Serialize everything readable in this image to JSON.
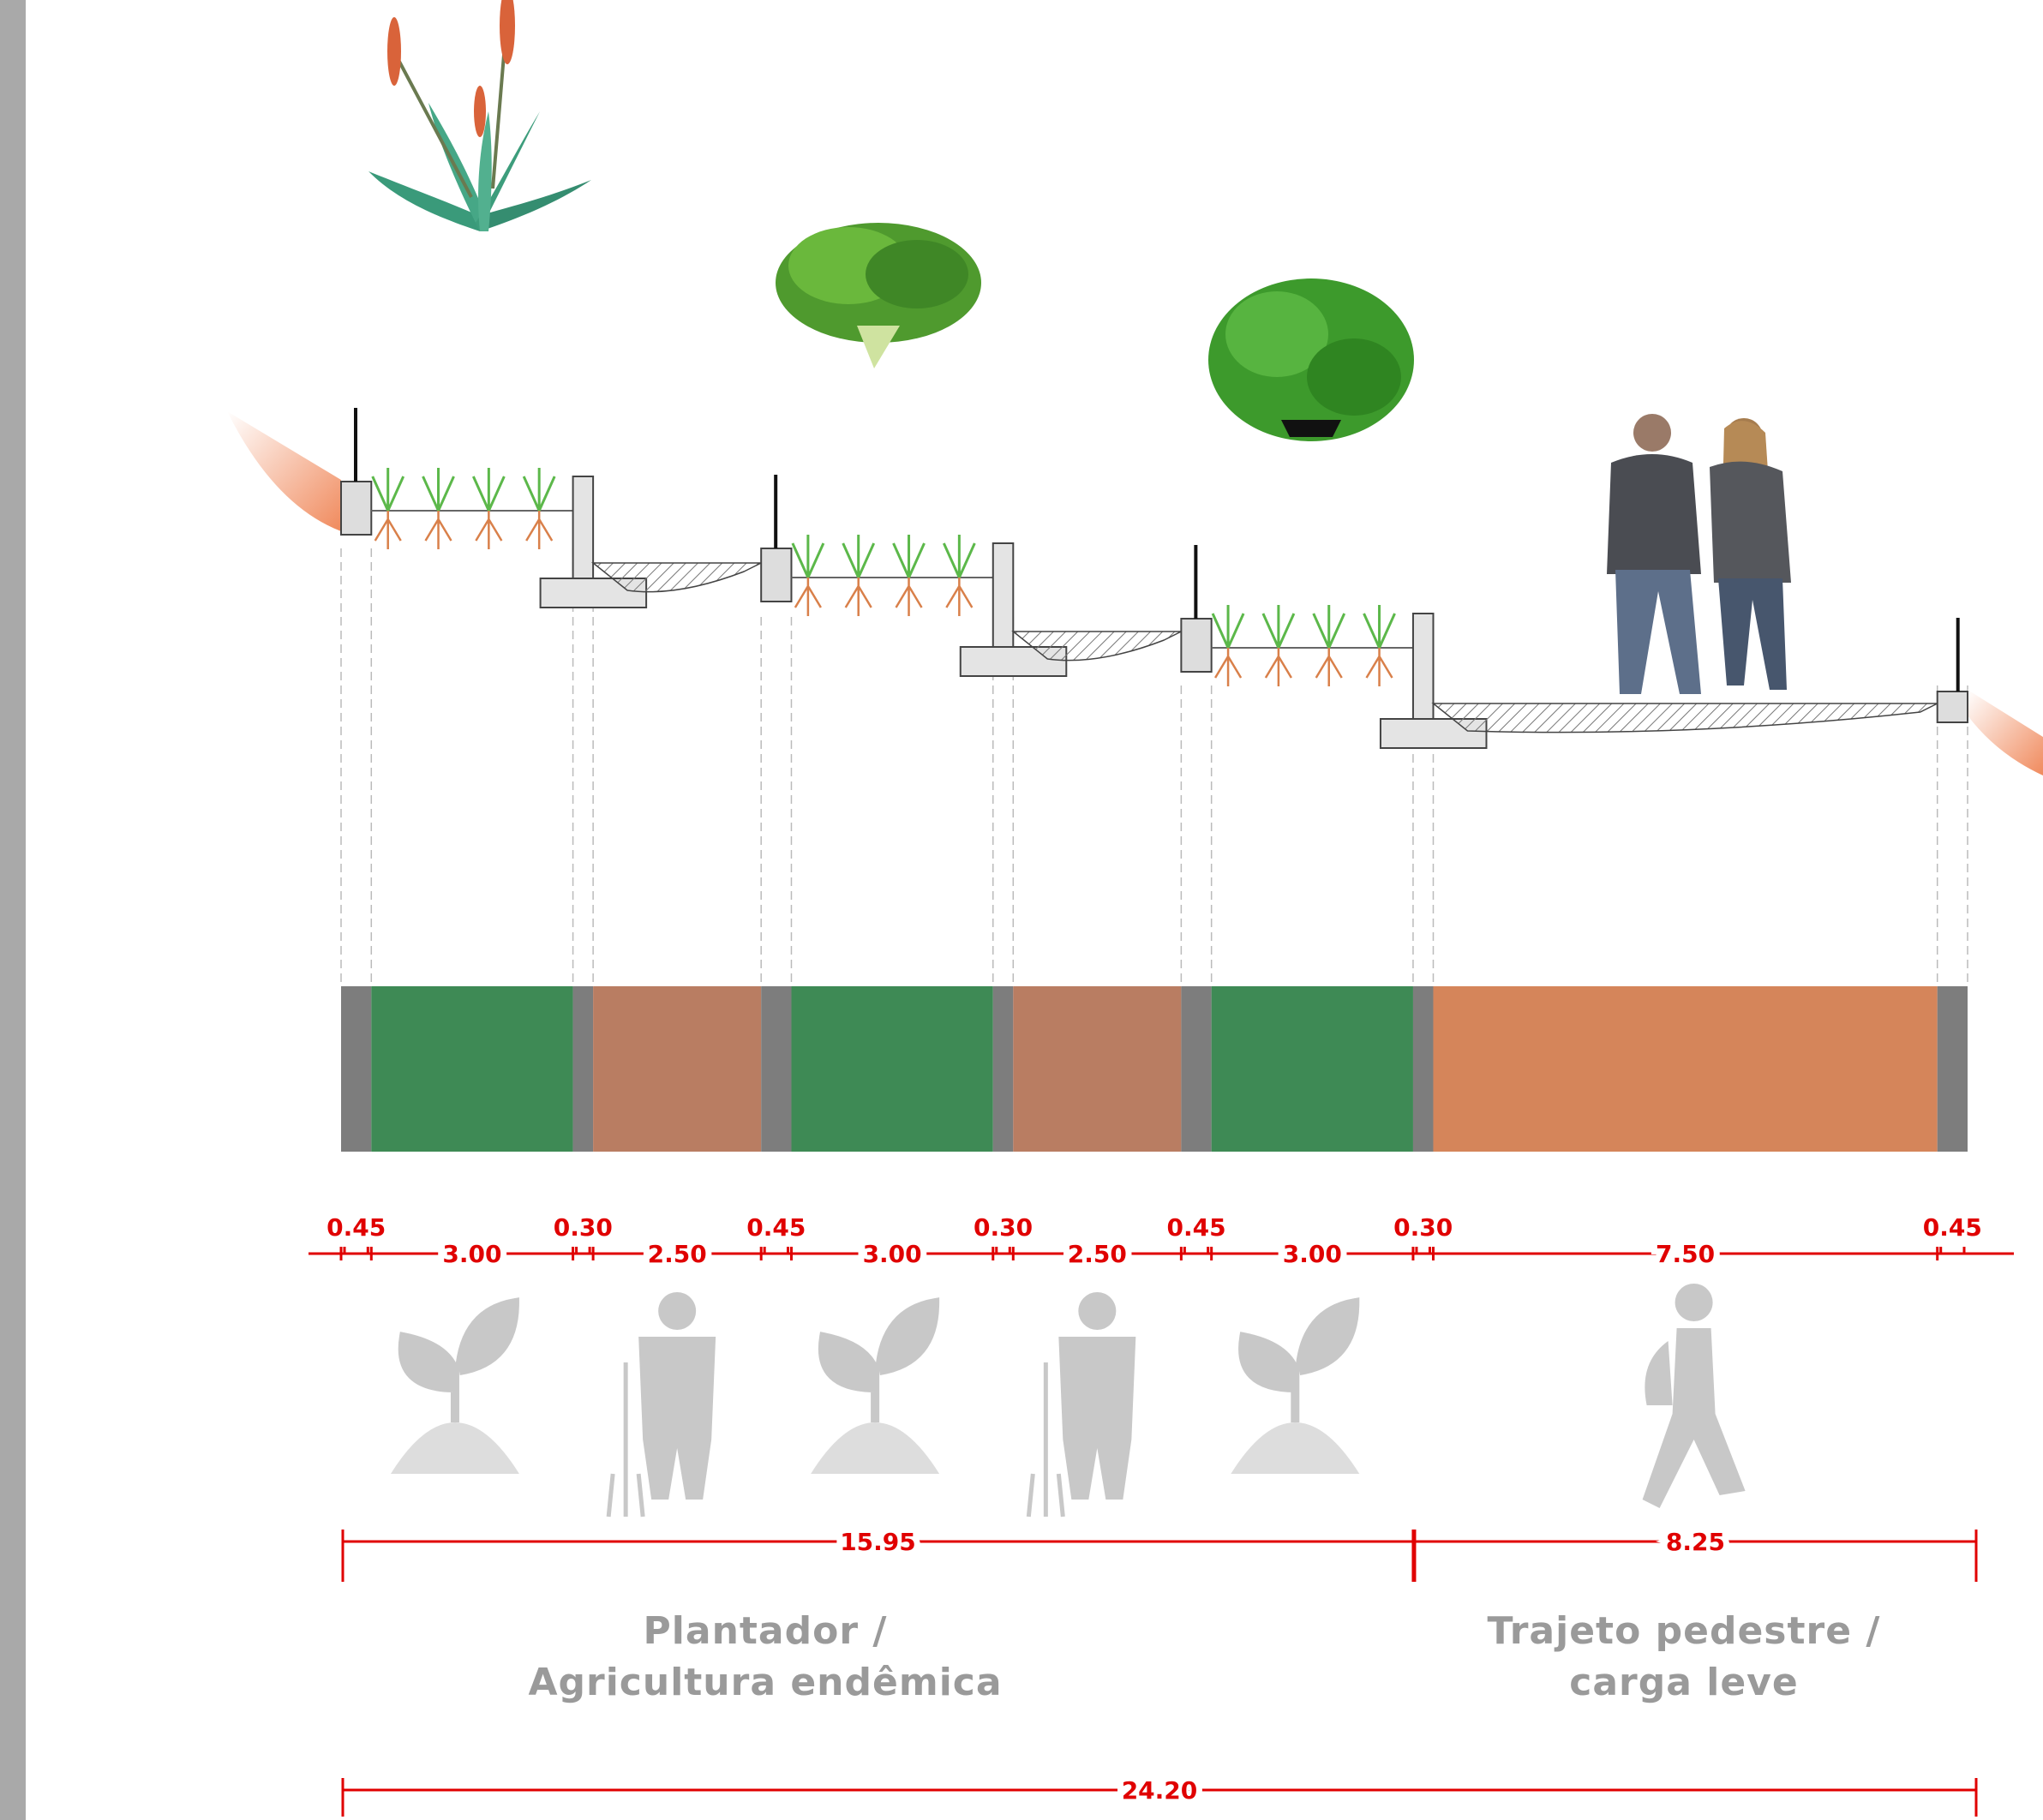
{
  "section": {
    "segments": [
      {
        "label": "0.45",
        "color": "#7d7d7d"
      },
      {
        "label": "3.00",
        "color": "#3e8a55"
      },
      {
        "label": "0.30",
        "color": "#7d7d7d"
      },
      {
        "label": "2.50",
        "color": "#b97d62"
      },
      {
        "label": "0.45",
        "color": "#7d7d7d"
      },
      {
        "label": "3.00",
        "color": "#3e8a55"
      },
      {
        "label": "0.30",
        "color": "#7d7d7d"
      },
      {
        "label": "2.50",
        "color": "#b97d62"
      },
      {
        "label": "0.45",
        "color": "#7d7d7d"
      },
      {
        "label": "3.00",
        "color": "#3e8a55"
      },
      {
        "label": "0.30",
        "color": "#7d7d7d"
      },
      {
        "label": "7.50",
        "color": "#d5855a"
      },
      {
        "label": "0.45",
        "color": "#7d7d7d"
      }
    ],
    "groups": [
      {
        "total": "15.95",
        "caption": [
          "Plantador /",
          "Agricultura endêmica"
        ]
      },
      {
        "total": "8.25",
        "caption": [
          "Trajeto pedestre /",
          "carga leve"
        ]
      }
    ],
    "overall": "24.20"
  }
}
